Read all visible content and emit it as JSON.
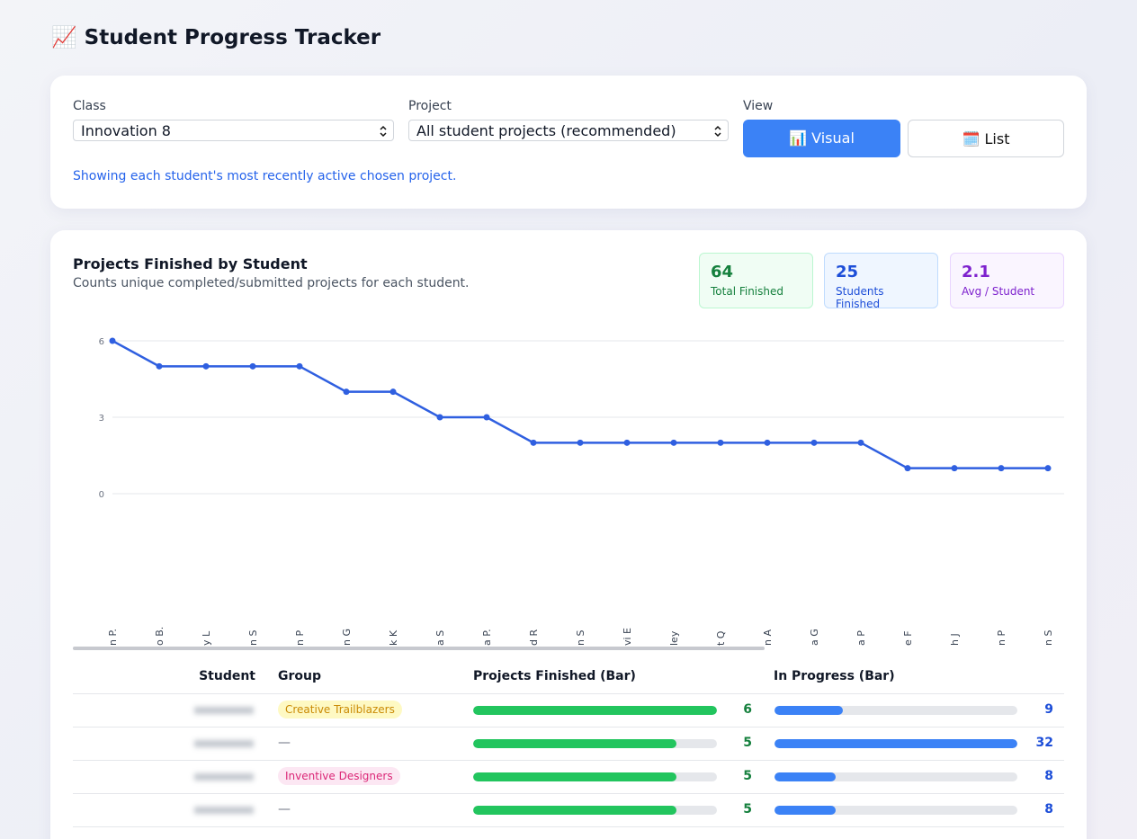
{
  "header": {
    "title": "📈 Student Progress Tracker"
  },
  "filters": {
    "class_label": "Class",
    "class_value": "Innovation 8",
    "project_label": "Project",
    "project_value": "All student projects (recommended)",
    "view_label": "View",
    "view_buttons": [
      "📊 Visual",
      "🗓️ List"
    ],
    "note": "Showing each student's most recently active chosen project."
  },
  "summary": {
    "title": "Projects Finished by Student",
    "subtitle": "Counts unique completed/submitted projects for each student.",
    "stats": [
      {
        "value": "64",
        "label": "Total Finished"
      },
      {
        "value": "25",
        "label": "Students Finished"
      },
      {
        "value": "2.1",
        "label": "Avg / Student"
      }
    ]
  },
  "chart_data": {
    "type": "line",
    "categories": [
      "n P.",
      "o B.",
      "y L",
      "n S",
      "n P",
      "n G",
      "k K",
      "a S",
      "a P.",
      "d R",
      "n S",
      "vi E",
      "ley",
      "t Q",
      "n A",
      "a G",
      "a P",
      "e F",
      "h J",
      "n P",
      "n S"
    ],
    "values": [
      6,
      5,
      5,
      5,
      5,
      4,
      4,
      3,
      3,
      2,
      2,
      2,
      2,
      2,
      2,
      2,
      2,
      1,
      1,
      1,
      1
    ],
    "color": "#2f5fe0",
    "ylim": [
      0,
      6
    ],
    "yticks": [
      0,
      3,
      6
    ],
    "grid": true
  },
  "table": {
    "headers": [
      "Student",
      "Group",
      "Projects Finished (Bar)",
      "In Progress (Bar)"
    ],
    "rows": [
      {
        "group": "Creative Trailblazers",
        "finished": 6,
        "in_progress": 9
      },
      {
        "group": "—",
        "finished": 5,
        "in_progress": 32
      },
      {
        "group": "Inventive Designers",
        "finished": 5,
        "in_progress": 8
      },
      {
        "group": "—",
        "finished": 5,
        "in_progress": 8
      }
    ]
  }
}
